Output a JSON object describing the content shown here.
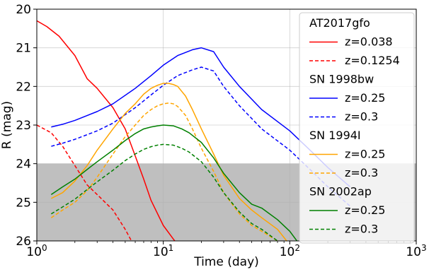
{
  "chart_data": {
    "type": "line",
    "xlabel": "Time (day)",
    "ylabel": "R (mag)",
    "xscale": "log",
    "xlim": [
      1,
      1000
    ],
    "ylim": [
      26,
      20
    ],
    "y_inverted": true,
    "grid": true,
    "legend_placement": "right",
    "x_ticks": [
      {
        "value": 1,
        "base": "10",
        "exp": "0"
      },
      {
        "value": 10,
        "base": "10",
        "exp": "1"
      },
      {
        "value": 100,
        "base": "10",
        "exp": "2"
      },
      {
        "value": 1000,
        "base": "10",
        "exp": "3"
      }
    ],
    "y_ticks": [
      20,
      21,
      22,
      23,
      24,
      25,
      26
    ],
    "shaded_region": {
      "y_from": 24,
      "y_to": 26,
      "color": "#bfbfbf"
    },
    "groups": [
      {
        "title": "AT2017gfo",
        "series": [
          {
            "name": "z=0.038",
            "color": "#ff0000",
            "dash": "solid",
            "x": [
              1.0,
              1.2,
              1.5,
              2.0,
              2.5,
              3.0,
              4.0,
              5.0,
              6.0,
              7.0,
              8.0,
              10.0,
              12.0,
              13.0
            ],
            "y": [
              20.3,
              20.45,
              20.7,
              21.2,
              21.8,
              22.05,
              22.55,
              23.1,
              23.8,
              24.4,
              24.95,
              25.6,
              25.95,
              26.1
            ]
          },
          {
            "name": "z=0.1254",
            "color": "#ff0000",
            "dash": "dashed",
            "x": [
              1.0,
              1.3,
              1.6,
              2.0,
              2.5,
              3.0,
              4.0,
              5.0,
              5.6,
              6.0
            ],
            "y": [
              23.0,
              23.2,
              23.55,
              24.05,
              24.55,
              24.8,
              25.2,
              25.7,
              26.0,
              26.2
            ]
          }
        ]
      },
      {
        "title": "SN 1998bw",
        "series": [
          {
            "name": "z=0.25",
            "color": "#0000ff",
            "dash": "solid",
            "x": [
              1.3,
              1.6,
              2.0,
              3.0,
              4.0,
              6.0,
              8.0,
              10.0,
              13.0,
              17.0,
              20.0,
              25.0,
              30.0,
              40.0,
              60.0,
              100.0,
              150.0,
              200.0,
              300.0
            ],
            "y": [
              23.05,
              22.98,
              22.88,
              22.65,
              22.45,
              22.05,
              21.72,
              21.45,
              21.2,
              21.05,
              21.0,
              21.1,
              21.5,
              22.0,
              22.6,
              23.15,
              23.7,
              24.1,
              24.6
            ]
          },
          {
            "name": "z=0.3",
            "color": "#0000ff",
            "dash": "dashed",
            "x": [
              1.3,
              1.6,
              2.0,
              3.0,
              4.0,
              6.0,
              8.0,
              10.0,
              13.0,
              17.0,
              20.0,
              25.0,
              30.0,
              40.0,
              60.0,
              100.0,
              150.0,
              200.0,
              300.0
            ],
            "y": [
              23.55,
              23.47,
              23.37,
              23.15,
              22.95,
              22.55,
              22.22,
              21.97,
              21.72,
              21.57,
              21.5,
              21.6,
              22.0,
              22.5,
              23.1,
              23.65,
              24.2,
              24.6,
              25.1
            ]
          }
        ]
      },
      {
        "title": "SN 1994I",
        "series": [
          {
            "name": "z=0.25",
            "color": "#ffa500",
            "dash": "solid",
            "x": [
              1.3,
              1.6,
              2.0,
              2.5,
              3.0,
              4.0,
              5.0,
              6.0,
              7.0,
              8.0,
              9.0,
              10.0,
              11.0,
              12.0,
              13.0,
              15.0,
              17.0,
              20.0,
              25.0,
              30.0,
              40.0,
              50.0,
              60.0,
              80.0,
              100.0
            ],
            "y": [
              24.9,
              24.75,
              24.45,
              24.05,
              23.65,
              23.1,
              22.7,
              22.45,
              22.2,
              22.05,
              21.97,
              21.92,
              21.92,
              21.95,
              22.0,
              22.25,
              22.6,
              23.1,
              23.75,
              24.3,
              24.9,
              25.2,
              25.4,
              25.7,
              26.1
            ]
          },
          {
            "name": "z=0.3",
            "color": "#ffa500",
            "dash": "dashed",
            "x": [
              1.3,
              1.6,
              2.0,
              2.5,
              3.0,
              4.0,
              5.0,
              6.0,
              7.0,
              8.0,
              9.0,
              10.0,
              11.0,
              12.0,
              13.0,
              15.0,
              17.0,
              20.0,
              25.0,
              30.0,
              40.0,
              50.0,
              60.0,
              80.0,
              90.0
            ],
            "y": [
              25.4,
              25.2,
              25.0,
              24.7,
              24.35,
              23.75,
              23.3,
              23.0,
              22.75,
              22.6,
              22.5,
              22.45,
              22.43,
              22.45,
              22.52,
              22.75,
              23.1,
              23.6,
              24.2,
              24.75,
              25.3,
              25.6,
              25.75,
              26.0,
              26.2
            ]
          }
        ]
      },
      {
        "title": "SN 2002ap",
        "series": [
          {
            "name": "z=0.25",
            "color": "#008000",
            "dash": "solid",
            "x": [
              1.3,
              1.6,
              2.0,
              2.5,
              3.0,
              4.0,
              5.0,
              6.0,
              7.0,
              8.0,
              9.0,
              10.0,
              12.0,
              14.0,
              16.0,
              20.0,
              25.0,
              30.0,
              40.0,
              50.0,
              60.0,
              80.0,
              100.0,
              120.0
            ],
            "y": [
              24.8,
              24.6,
              24.4,
              24.15,
              23.95,
              23.65,
              23.4,
              23.22,
              23.1,
              23.05,
              23.02,
              23.0,
              23.02,
              23.1,
              23.2,
              23.45,
              23.85,
              24.25,
              24.75,
              25.05,
              25.15,
              25.45,
              25.75,
              26.1
            ]
          },
          {
            "name": "z=0.3",
            "color": "#008000",
            "dash": "dashed",
            "x": [
              1.3,
              1.6,
              2.0,
              2.5,
              3.0,
              4.0,
              5.0,
              6.0,
              7.0,
              8.0,
              9.0,
              10.0,
              12.0,
              14.0,
              16.0,
              20.0,
              25.0,
              30.0,
              40.0,
              50.0,
              60.0,
              80.0,
              90.0
            ],
            "y": [
              25.3,
              25.12,
              24.92,
              24.67,
              24.47,
              24.17,
              23.92,
              23.75,
              23.63,
              23.56,
              23.52,
              23.5,
              23.52,
              23.6,
              23.7,
              23.95,
              24.35,
              24.75,
              25.25,
              25.55,
              25.7,
              26.0,
              26.15
            ]
          }
        ]
      }
    ]
  }
}
